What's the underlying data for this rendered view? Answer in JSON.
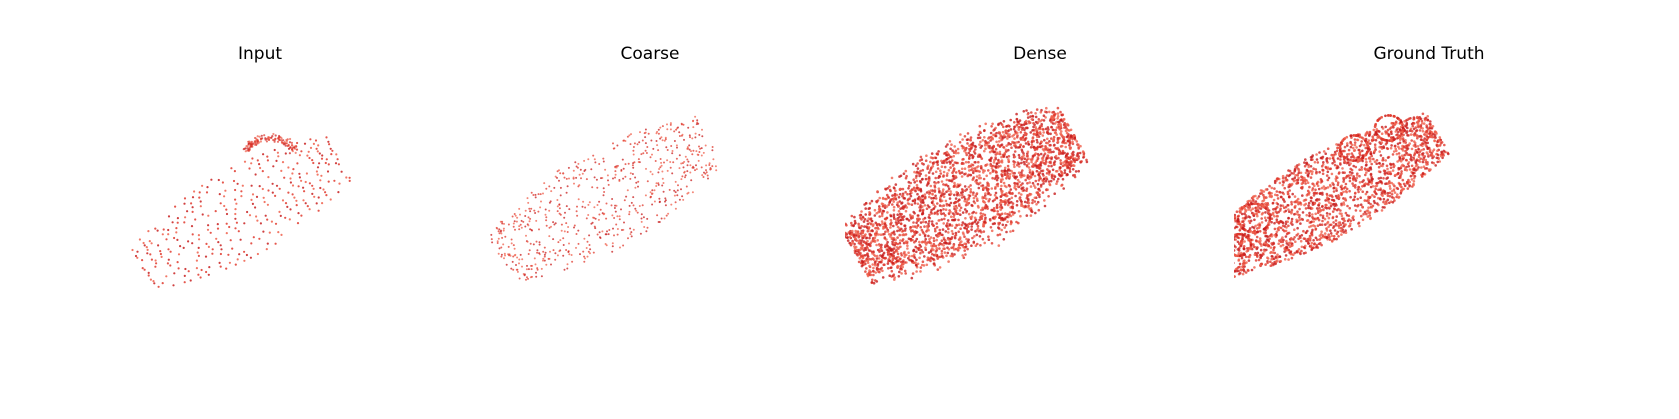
{
  "panels": [
    {
      "id": "input",
      "title": "Input",
      "style": "sparse-rows"
    },
    {
      "id": "coarse",
      "title": "Coarse",
      "style": "scatter"
    },
    {
      "id": "dense",
      "title": "Dense",
      "style": "dense"
    },
    {
      "id": "ground_truth",
      "title": "Ground Truth",
      "style": "gt"
    }
  ],
  "colors": {
    "point_dark": "#c81e1e",
    "point_mid": "#e03a2e",
    "point_light": "#f0604c",
    "background": "#ffffff"
  }
}
